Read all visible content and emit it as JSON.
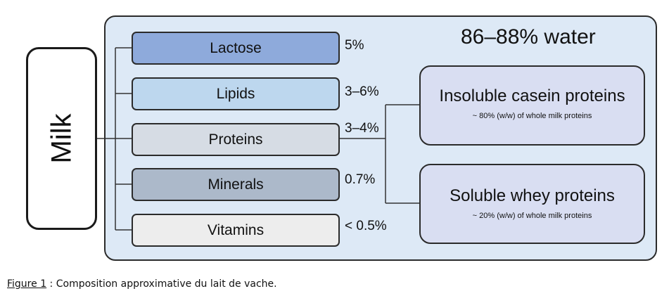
{
  "milk_label": "Milk",
  "water_label": "86–88% water",
  "components": [
    {
      "name": "Lactose",
      "percent": "5%",
      "fill": "#8eaadb"
    },
    {
      "name": "Lipids",
      "percent": "3–6%",
      "fill": "#bdd7ee"
    },
    {
      "name": "Proteins",
      "percent": "3–4%",
      "fill": "#d6dce4"
    },
    {
      "name": "Minerals",
      "percent": "0.7%",
      "fill": "#acb9ca"
    },
    {
      "name": "Vitamins",
      "percent": "< 0.5%",
      "fill": "#ededed"
    }
  ],
  "proteins": [
    {
      "title": "Insoluble casein proteins",
      "subtitle": "~ 80% (w/w) of whole milk proteins"
    },
    {
      "title": "Soluble whey proteins",
      "subtitle": "~ 20% (w/w) of whole milk proteins"
    }
  ],
  "caption": {
    "figure": "Figure 1",
    "text": " : Composition approximative du lait de vache."
  },
  "colors": {
    "panel": "#dde9f6",
    "protein_box": "#d9def2",
    "border": "#2b2b2b"
  }
}
